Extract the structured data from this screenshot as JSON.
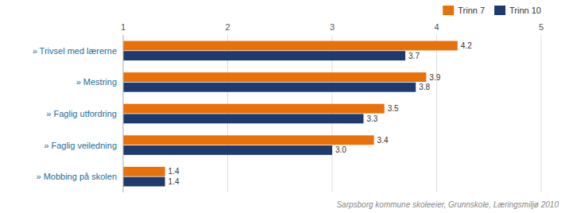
{
  "chart_data": {
    "type": "bar",
    "orientation": "horizontal",
    "categories": [
      "» Trivsel med lærerne",
      "» Mestring",
      "» Faglig utfordring",
      "» Faglig veiledning",
      "» Mobbing på skolen"
    ],
    "series": [
      {
        "name": "Trinn 7",
        "color": "#E8710A",
        "values": [
          4.2,
          3.9,
          3.5,
          3.4,
          1.4
        ],
        "value_labels": [
          "4.2",
          "3.9",
          "3.5",
          "3.4",
          "1.4"
        ]
      },
      {
        "name": "Trinn 10",
        "color": "#1F3A6E",
        "values": [
          3.7,
          3.8,
          3.3,
          3.0,
          1.4
        ],
        "value_labels": [
          "3.7",
          "3.8",
          "3.3",
          "3.0",
          "1.4"
        ]
      }
    ],
    "xlim": [
      1,
      5
    ],
    "xticks": [
      1,
      2,
      3,
      4,
      5
    ],
    "grid": true,
    "legend": "upper right",
    "data_labels": true,
    "annotations": [
      "Sarpsborg kommune skoleeier, Grunnskole, Læringsmiljø 2010"
    ]
  }
}
